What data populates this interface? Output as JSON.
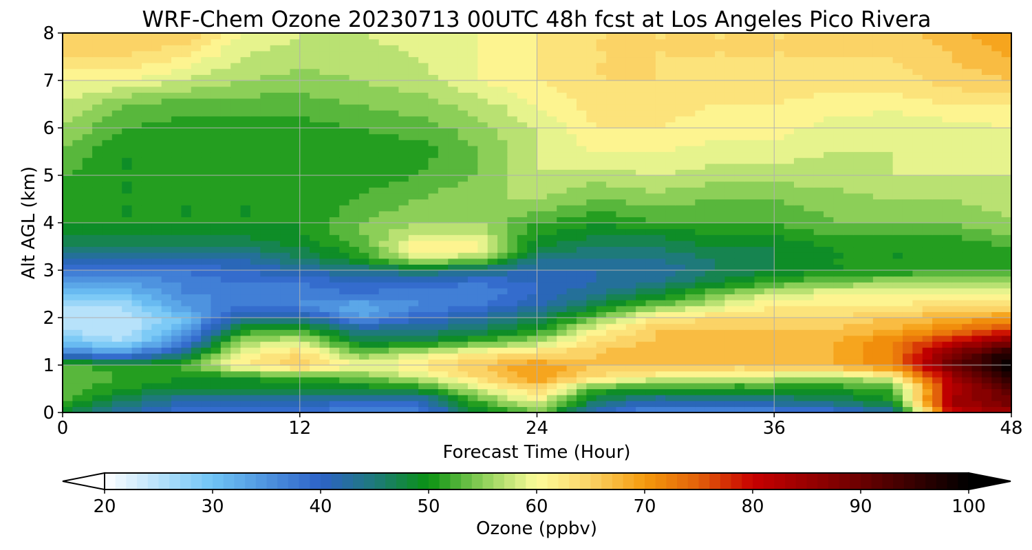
{
  "chart_data": {
    "type": "heatmap",
    "title": "WRF-Chem Ozone  20230713 00UTC 48h fcst at Los Angeles Pico Rivera",
    "xlabel": "Forecast Time (Hour)",
    "ylabel": "Alt AGL (km)",
    "xlim": [
      0,
      48
    ],
    "ylim": [
      0,
      8
    ],
    "xticks": [
      0,
      12,
      24,
      36,
      48
    ],
    "yticks": [
      0,
      1,
      2,
      3,
      4,
      5,
      6,
      7,
      8
    ],
    "xtick_labels": [
      "0",
      "12",
      "24",
      "36",
      "48"
    ],
    "ytick_labels": [
      "0",
      "1",
      "2",
      "3",
      "4",
      "5",
      "6",
      "7",
      "8"
    ],
    "grid": true,
    "colorbar": {
      "label": "Ozone  (ppbv)",
      "range": [
        20,
        100
      ],
      "ticks": [
        20,
        30,
        40,
        50,
        60,
        70,
        80,
        90,
        100
      ],
      "tick_labels": [
        "20",
        "30",
        "40",
        "50",
        "60",
        "70",
        "80",
        "90",
        "100"
      ],
      "extend": "both",
      "orientation": "horizontal",
      "min_color": "#ffffff",
      "max_color": "#000000"
    },
    "x": [
      0,
      3,
      6,
      9,
      12,
      15,
      18,
      21,
      24,
      27,
      30,
      33,
      36,
      39,
      42,
      45,
      48
    ],
    "y": [
      0,
      0.25,
      0.5,
      0.75,
      1,
      1.25,
      1.5,
      1.75,
      2,
      2.25,
      2.5,
      2.75,
      3,
      3.25,
      3.5,
      3.75,
      4,
      4.5,
      5,
      5.5,
      6,
      6.5,
      7,
      7.5,
      8
    ],
    "z": [
      [
        48,
        42,
        38,
        38,
        38,
        36,
        36,
        48,
        54,
        40,
        34,
        36,
        36,
        38,
        42,
        80,
        85
      ],
      [
        52,
        46,
        42,
        42,
        42,
        40,
        40,
        52,
        60,
        46,
        42,
        42,
        44,
        46,
        50,
        85,
        90
      ],
      [
        54,
        50,
        48,
        48,
        48,
        48,
        50,
        58,
        65,
        52,
        50,
        50,
        50,
        50,
        52,
        82,
        92
      ],
      [
        54,
        52,
        50,
        50,
        52,
        54,
        58,
        64,
        70,
        64,
        60,
        58,
        58,
        56,
        60,
        84,
        96
      ],
      [
        54,
        50,
        52,
        62,
        66,
        60,
        62,
        66,
        70,
        66,
        68,
        66,
        66,
        68,
        72,
        90,
        100
      ],
      [
        38,
        34,
        44,
        60,
        64,
        54,
        58,
        62,
        64,
        66,
        68,
        68,
        66,
        68,
        72,
        88,
        98
      ],
      [
        30,
        26,
        36,
        56,
        58,
        48,
        48,
        52,
        56,
        64,
        66,
        68,
        66,
        68,
        72,
        80,
        88
      ],
      [
        26,
        24,
        32,
        50,
        52,
        44,
        44,
        46,
        50,
        60,
        66,
        66,
        66,
        66,
        68,
        72,
        78
      ],
      [
        24,
        24,
        30,
        42,
        44,
        34,
        40,
        42,
        46,
        54,
        62,
        64,
        64,
        64,
        66,
        68,
        70
      ],
      [
        26,
        26,
        34,
        38,
        36,
        32,
        36,
        38,
        42,
        48,
        54,
        58,
        62,
        62,
        62,
        64,
        64
      ],
      [
        30,
        30,
        36,
        36,
        36,
        38,
        36,
        36,
        40,
        44,
        48,
        54,
        58,
        60,
        60,
        60,
        60
      ],
      [
        34,
        34,
        36,
        38,
        38,
        40,
        40,
        38,
        40,
        42,
        44,
        48,
        52,
        54,
        56,
        56,
        56
      ],
      [
        38,
        38,
        38,
        40,
        42,
        44,
        46,
        44,
        42,
        42,
        42,
        46,
        48,
        50,
        50,
        52,
        52
      ],
      [
        42,
        42,
        42,
        42,
        46,
        50,
        58,
        56,
        44,
        44,
        44,
        46,
        48,
        50,
        50,
        50,
        52
      ],
      [
        46,
        46,
        46,
        46,
        48,
        52,
        62,
        62,
        48,
        46,
        46,
        48,
        48,
        50,
        50,
        50,
        52
      ],
      [
        48,
        48,
        48,
        48,
        50,
        54,
        58,
        58,
        50,
        48,
        48,
        50,
        50,
        52,
        52,
        52,
        54
      ],
      [
        50,
        50,
        50,
        50,
        50,
        54,
        56,
        56,
        52,
        50,
        52,
        52,
        52,
        54,
        54,
        54,
        56
      ],
      [
        51,
        50,
        50,
        50,
        50,
        52,
        54,
        56,
        56,
        54,
        55,
        54,
        54,
        55,
        56,
        56,
        57
      ],
      [
        52,
        50,
        50,
        51,
        50,
        51,
        52,
        54,
        58,
        57,
        58,
        57,
        57,
        57,
        58,
        58,
        58
      ],
      [
        54,
        50,
        50,
        50,
        50,
        51,
        51,
        54,
        58,
        60,
        60,
        59,
        59,
        58,
        58,
        59,
        59
      ],
      [
        56,
        52,
        51,
        51,
        51,
        52,
        53,
        55,
        58,
        62,
        62,
        61,
        61,
        59,
        58,
        59,
        60
      ],
      [
        58,
        54,
        53,
        53,
        53,
        54,
        55,
        57,
        60,
        63,
        63,
        62,
        62,
        61,
        61,
        62,
        62
      ],
      [
        60,
        60,
        58,
        56,
        55,
        56,
        57,
        60,
        62,
        64,
        64,
        63,
        63,
        63,
        63,
        65,
        66
      ],
      [
        64,
        64,
        62,
        58,
        57,
        57,
        58,
        60,
        62,
        64,
        64,
        64,
        64,
        64,
        64,
        66,
        68
      ],
      [
        66,
        66,
        66,
        60,
        58,
        58,
        59,
        60,
        62,
        64,
        64,
        64,
        64,
        64,
        65,
        67,
        70
      ]
    ],
    "colormap_stops": [
      {
        "v": 20,
        "c": "#ffffff"
      },
      {
        "v": 30,
        "c": "#6fc4f5"
      },
      {
        "v": 40,
        "c": "#2d62c8"
      },
      {
        "v": 45,
        "c": "#1e7a7a"
      },
      {
        "v": 50,
        "c": "#0a9212"
      },
      {
        "v": 55,
        "c": "#8ccf58"
      },
      {
        "v": 60,
        "c": "#fdfc9a"
      },
      {
        "v": 65,
        "c": "#fbd366"
      },
      {
        "v": 70,
        "c": "#f59a0c"
      },
      {
        "v": 75,
        "c": "#e2600a"
      },
      {
        "v": 80,
        "c": "#c80000"
      },
      {
        "v": 90,
        "c": "#6b0000"
      },
      {
        "v": 100,
        "c": "#000000"
      }
    ]
  }
}
